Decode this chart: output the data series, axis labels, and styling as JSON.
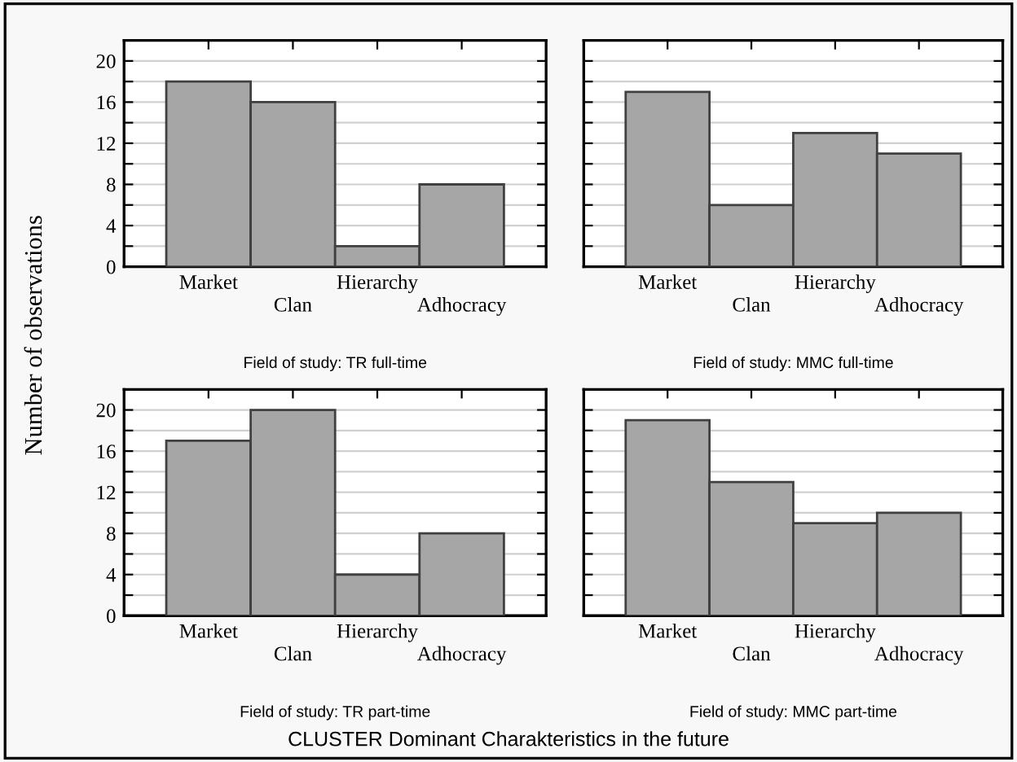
{
  "chart_data": [
    {
      "type": "bar",
      "xlabel": "Field of study: TR full-time",
      "ylabel": "Number of observations",
      "categories": [
        "Market",
        "Clan",
        "Hierarchy",
        "Adhocracy"
      ],
      "values": [
        18,
        16,
        2,
        8
      ],
      "color": "#a6a6a6",
      "ylim": [
        0,
        22
      ],
      "yticks": [
        0,
        {
          "value": 2,
          "label": null
        },
        4,
        {
          "value": 6,
          "label": null
        },
        8,
        {
          "value": 10,
          "label": null
        },
        12,
        {
          "value": 14,
          "label": null
        },
        16,
        {
          "value": 18,
          "label": null
        },
        20
      ],
      "grid": "y"
    },
    {
      "type": "bar",
      "xlabel": "Field of study: MMC full-time",
      "categories": [
        "Market",
        "Clan",
        "Hierarchy",
        "Adhocracy"
      ],
      "values": [
        17,
        6,
        13,
        11
      ],
      "color": "#a6a6a6",
      "ylim": [
        0,
        22
      ],
      "yticks": [
        0,
        {
          "value": 2,
          "label": null
        },
        4,
        {
          "value": 6,
          "label": null
        },
        8,
        {
          "value": 10,
          "label": null
        },
        12,
        {
          "value": 14,
          "label": null
        },
        16,
        {
          "value": 18,
          "label": null
        },
        20
      ],
      "grid": "y",
      "tick_labels": "x"
    },
    {
      "type": "bar",
      "xlabel": "Field of study: TR part-time",
      "categories": [
        "Market",
        "Clan",
        "Hierarchy",
        "Adhocracy"
      ],
      "values": [
        17,
        20,
        4,
        8
      ],
      "color": "#a6a6a6",
      "ylim": [
        0,
        22
      ],
      "yticks": [
        0,
        {
          "value": 2,
          "label": null
        },
        4,
        {
          "value": 6,
          "label": null
        },
        8,
        {
          "value": 10,
          "label": null
        },
        12,
        {
          "value": 14,
          "label": null
        },
        16,
        {
          "value": 18,
          "label": null
        },
        20
      ],
      "grid": "y"
    },
    {
      "type": "bar",
      "xlabel": "Field of study: MMC part-time",
      "categories": [
        "Market",
        "Clan",
        "Hierarchy",
        "Adhocracy"
      ],
      "values": [
        19,
        13,
        9,
        10
      ],
      "color": "#a6a6a6",
      "ylim": [
        0,
        22
      ],
      "yticks": [
        0,
        {
          "value": 2,
          "label": null
        },
        4,
        {
          "value": 6,
          "label": null
        },
        8,
        {
          "value": 10,
          "label": null
        },
        12,
        {
          "value": 14,
          "label": null
        },
        16,
        {
          "value": 18,
          "label": null
        },
        20
      ],
      "grid": "y",
      "tick_labels": "x",
      "annotations": [
        "CLUSTER Dominant Charakteristics in the future"
      ]
    }
  ]
}
